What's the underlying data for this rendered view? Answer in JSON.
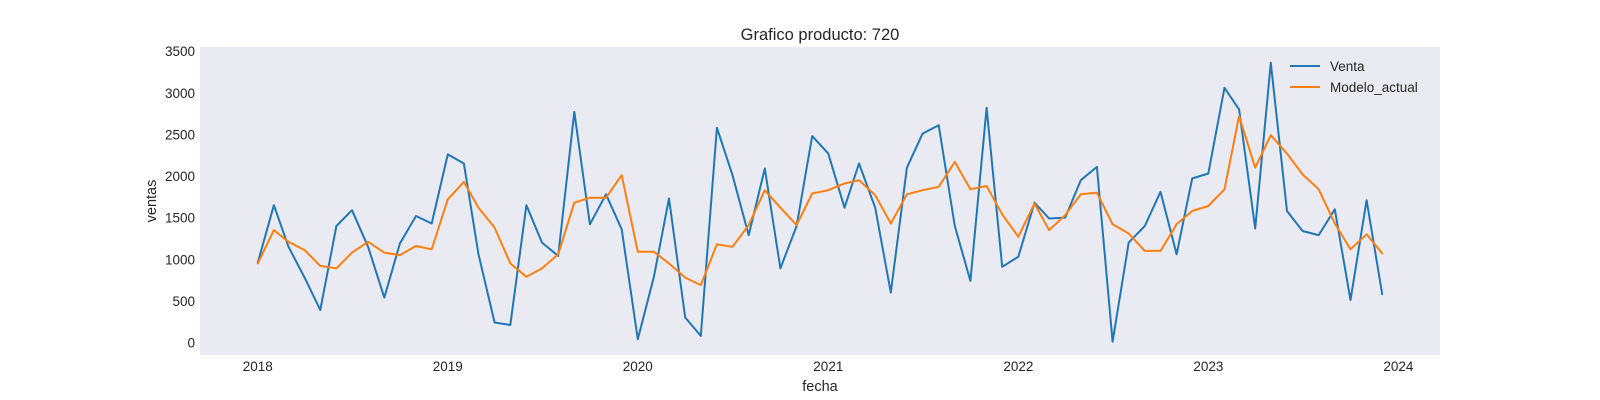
{
  "chart_data": {
    "type": "line",
    "title": "Grafico producto: 720",
    "xlabel": "fecha",
    "ylabel": "ventas",
    "x_ticks": [
      "2018",
      "2019",
      "2020",
      "2021",
      "2022",
      "2023",
      "2024"
    ],
    "y_ticks": [
      "0",
      "500",
      "1000",
      "1500",
      "2000",
      "2500",
      "3000",
      "3500"
    ],
    "xlim": [
      "2017-09-12",
      "2024-03-21"
    ],
    "ylim": [
      -150,
      3550
    ],
    "grid": false,
    "legend_position": "top-right",
    "x": [
      "2018-01",
      "2018-02",
      "2018-03",
      "2018-04",
      "2018-05",
      "2018-06",
      "2018-07",
      "2018-08",
      "2018-09",
      "2018-10",
      "2018-11",
      "2018-12",
      "2019-01",
      "2019-02",
      "2019-03",
      "2019-04",
      "2019-05",
      "2019-06",
      "2019-07",
      "2019-08",
      "2019-09",
      "2019-10",
      "2019-11",
      "2019-12",
      "2020-01",
      "2020-02",
      "2020-03",
      "2020-04",
      "2020-05",
      "2020-06",
      "2020-07",
      "2020-08",
      "2020-09",
      "2020-10",
      "2020-11",
      "2020-12",
      "2021-01",
      "2021-02",
      "2021-03",
      "2021-04",
      "2021-05",
      "2021-06",
      "2021-07",
      "2021-08",
      "2021-09",
      "2021-10",
      "2021-11",
      "2021-12",
      "2022-01",
      "2022-02",
      "2022-03",
      "2022-04",
      "2022-05",
      "2022-06",
      "2022-07",
      "2022-08",
      "2022-09",
      "2022-10",
      "2022-11",
      "2022-12",
      "2023-01",
      "2023-02",
      "2023-03",
      "2023-04",
      "2023-05",
      "2023-06",
      "2023-07",
      "2023-08",
      "2023-09",
      "2023-10",
      "2023-11",
      "2023-12"
    ],
    "series": [
      {
        "name": "Venta",
        "color": "#1f77b4",
        "values": [
          960,
          1650,
          1150,
          780,
          390,
          1400,
          1590,
          1150,
          540,
          1190,
          1520,
          1430,
          2260,
          2150,
          1060,
          240,
          210,
          1650,
          1200,
          1040,
          2770,
          1420,
          1780,
          1360,
          40,
          790,
          1730,
          300,
          80,
          2580,
          2010,
          1290,
          2090,
          890,
          1400,
          2480,
          2270,
          1620,
          2150,
          1620,
          600,
          2100,
          2510,
          2610,
          1400,
          740,
          2820,
          910,
          1030,
          1680,
          1490,
          1500,
          1950,
          2110,
          10,
          1200,
          1400,
          1810,
          1060,
          1970,
          2030,
          3060,
          2800,
          1370,
          3360,
          1580,
          1340,
          1290,
          1600,
          510,
          1710,
          580
        ]
      },
      {
        "name": "Modelo_actual",
        "color": "#ff7f0e",
        "values": [
          950,
          1350,
          1210,
          1110,
          920,
          890,
          1080,
          1210,
          1080,
          1050,
          1160,
          1120,
          1720,
          1930,
          1620,
          1380,
          950,
          790,
          890,
          1060,
          1680,
          1740,
          1740,
          2010,
          1090,
          1090,
          950,
          780,
          690,
          1180,
          1150,
          1410,
          1830,
          1620,
          1410,
          1790,
          1830,
          1910,
          1950,
          1770,
          1430,
          1780,
          1830,
          1870,
          2170,
          1840,
          1880,
          1540,
          1270,
          1670,
          1350,
          1530,
          1780,
          1800,
          1420,
          1310,
          1100,
          1100,
          1420,
          1580,
          1640,
          1840,
          2720,
          2100,
          2490,
          2270,
          2020,
          1840,
          1430,
          1120,
          1300,
          1070
        ]
      }
    ]
  }
}
